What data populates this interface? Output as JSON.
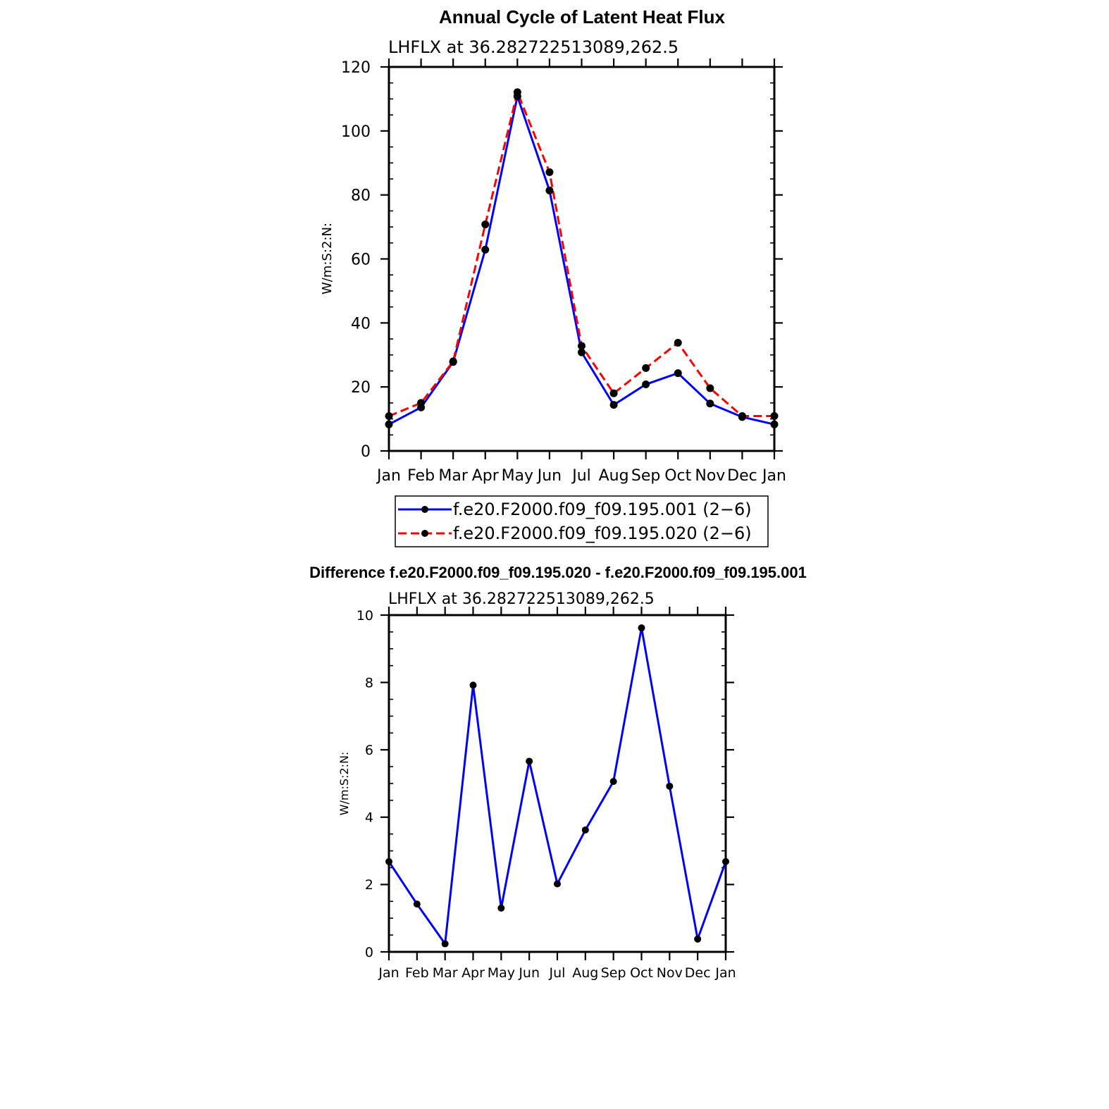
{
  "chart_data": [
    {
      "type": "line",
      "title": "Annual Cycle of Latent Heat Flux",
      "subtitle": "LHFLX  at  36.282722513089,262.5",
      "xlabel": "",
      "ylabel": "W/m:S:2:N:",
      "categories": [
        "Jan",
        "Feb",
        "Mar",
        "Apr",
        "May",
        "Jun",
        "Jul",
        "Aug",
        "Sep",
        "Oct",
        "Nov",
        "Dec",
        "Jan"
      ],
      "ylim": [
        0,
        120
      ],
      "yticks": [
        "0",
        "20",
        "40",
        "60",
        "80",
        "100",
        "120"
      ],
      "grid": false,
      "legend_position": "below",
      "series": [
        {
          "name": "f.e20.F2000.f09_f09.195.001  (2−6)",
          "values": [
            8.3,
            13.6,
            27.8,
            62.9,
            110.8,
            81.4,
            30.8,
            14.4,
            20.8,
            24.3,
            14.8,
            10.6,
            8.3
          ],
          "color": "#0000ff",
          "dash": "solid"
        },
        {
          "name": "f.e20.F2000.f09_f09.195.020  (2−6)",
          "values": [
            10.9,
            15.0,
            28.0,
            70.8,
            112.1,
            87.1,
            32.8,
            18.0,
            25.9,
            33.8,
            19.6,
            10.9,
            10.9
          ],
          "color": "#ff0000",
          "dash": "dashed"
        }
      ]
    },
    {
      "type": "line",
      "title": "Difference f.e20.F2000.f09_f09.195.020 - f.e20.F2000.f09_f09.195.001",
      "subtitle": "LHFLX  at  36.282722513089,262.5",
      "xlabel": "",
      "ylabel": "W/m:S:2:N:",
      "categories": [
        "Jan",
        "Feb",
        "Mar",
        "Apr",
        "May",
        "Jun",
        "Jul",
        "Aug",
        "Sep",
        "Oct",
        "Nov",
        "Dec",
        "Jan"
      ],
      "ylim": [
        0,
        10
      ],
      "yticks": [
        "0",
        "2",
        "4",
        "6",
        "8",
        "10"
      ],
      "grid": false,
      "series": [
        {
          "name": "difference",
          "values": [
            2.68,
            1.42,
            0.24,
            7.92,
            1.3,
            5.66,
            2.02,
            3.62,
            5.06,
            9.62,
            4.92,
            0.38,
            2.68
          ],
          "color": "#0000ff",
          "dash": "solid"
        }
      ]
    }
  ]
}
